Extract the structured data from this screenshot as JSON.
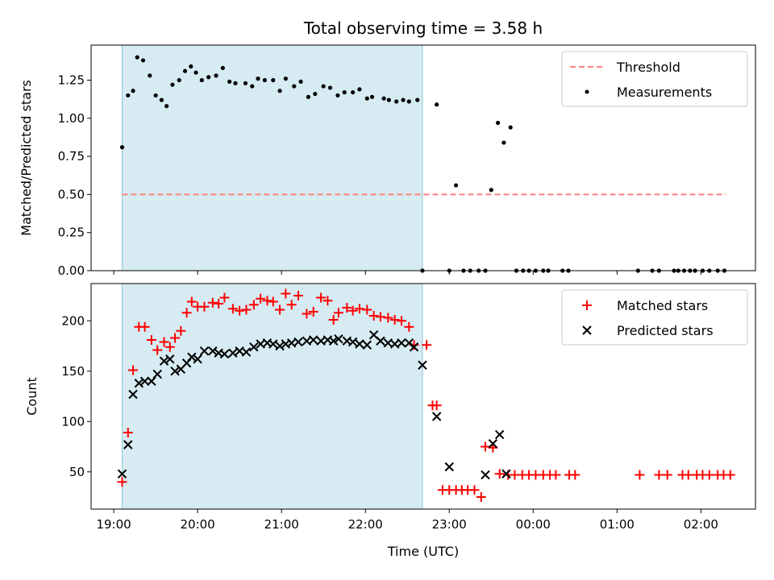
{
  "chart_data": [
    {
      "type": "scatter",
      "title": "Total observing time = 3.58 h",
      "xlabel": "",
      "ylabel": "Matched/Predicted stars",
      "x_unit": "hours (UTC)",
      "xlim": [
        18.73,
        26.65
      ],
      "ylim": [
        0.0,
        1.48
      ],
      "yticks": [
        0.0,
        0.25,
        0.5,
        0.75,
        1.0,
        1.25
      ],
      "ytick_labels": [
        "0.00",
        "0.25",
        "0.50",
        "0.75",
        "1.00",
        "1.25"
      ],
      "highlight_span": {
        "x_start": 19.1,
        "x_end": 22.68,
        "color": "#add8e6"
      },
      "threshold": {
        "name": "Threshold",
        "value": 0.5,
        "x_start": 19.1,
        "x_end": 26.3,
        "color": "#ff7f7f"
      },
      "legend_position": "top-right",
      "series": [
        {
          "name": "Measurements",
          "color": "#000000",
          "marker": "dot",
          "x": [
            19.1,
            19.17,
            19.23,
            19.28,
            19.35,
            19.43,
            19.5,
            19.57,
            19.63,
            19.7,
            19.78,
            19.85,
            19.92,
            19.98,
            20.05,
            20.13,
            20.22,
            20.3,
            20.38,
            20.45,
            20.57,
            20.65,
            20.72,
            20.8,
            20.9,
            20.98,
            21.05,
            21.15,
            21.23,
            21.32,
            21.4,
            21.5,
            21.58,
            21.67,
            21.75,
            21.85,
            21.93,
            22.02,
            22.08,
            22.22,
            22.28,
            22.37,
            22.45,
            22.52,
            22.62,
            22.68,
            22.85,
            23.0,
            23.08,
            23.17,
            23.25,
            23.35,
            23.43,
            23.5,
            23.58,
            23.65,
            23.73,
            23.8,
            23.88,
            23.95,
            24.03,
            24.12,
            24.18,
            24.35,
            24.42,
            25.25,
            25.42,
            25.5,
            25.68,
            25.73,
            25.8,
            25.87,
            25.93,
            26.02,
            26.1,
            26.2,
            26.28
          ],
          "y": [
            0.81,
            1.15,
            1.18,
            1.4,
            1.38,
            1.28,
            1.15,
            1.12,
            1.08,
            1.22,
            1.25,
            1.31,
            1.34,
            1.3,
            1.25,
            1.27,
            1.28,
            1.33,
            1.24,
            1.23,
            1.23,
            1.21,
            1.26,
            1.25,
            1.25,
            1.18,
            1.26,
            1.21,
            1.24,
            1.14,
            1.16,
            1.21,
            1.2,
            1.15,
            1.17,
            1.17,
            1.19,
            1.13,
            1.14,
            1.13,
            1.12,
            1.11,
            1.12,
            1.11,
            1.12,
            0.0,
            1.09,
            0.0,
            0.56,
            0.0,
            0.0,
            0.0,
            0.0,
            0.53,
            0.97,
            0.84,
            0.94,
            0.0,
            0.0,
            0.0,
            0.0,
            0.0,
            0.0,
            0.0,
            0.0,
            0.0,
            0.0,
            0.0,
            0.0,
            0.0,
            0.0,
            0.0,
            0.0,
            0.0,
            0.0,
            0.0,
            0.0
          ]
        }
      ]
    },
    {
      "type": "scatter",
      "xlabel": "Time (UTC)",
      "ylabel": "Count",
      "x_unit": "hours (UTC)",
      "xlim": [
        18.73,
        26.65
      ],
      "ylim": [
        13,
        237
      ],
      "xticks": [
        19,
        20,
        21,
        22,
        23,
        24,
        25,
        26
      ],
      "xtick_labels": [
        "19:00",
        "20:00",
        "21:00",
        "22:00",
        "23:00",
        "00:00",
        "01:00",
        "02:00"
      ],
      "yticks": [
        50,
        100,
        150,
        200
      ],
      "ytick_labels": [
        "50",
        "100",
        "150",
        "200"
      ],
      "highlight_span": {
        "x_start": 19.1,
        "x_end": 22.68,
        "color": "#add8e6"
      },
      "legend_position": "top-right",
      "series": [
        {
          "name": "Matched stars",
          "color": "#ff0000",
          "marker": "plus",
          "x": [
            19.1,
            19.17,
            19.23,
            19.3,
            19.37,
            19.45,
            19.52,
            19.6,
            19.67,
            19.73,
            19.8,
            19.87,
            19.93,
            20.0,
            20.08,
            20.18,
            20.25,
            20.32,
            20.42,
            20.5,
            20.58,
            20.67,
            20.75,
            20.83,
            20.9,
            20.98,
            21.05,
            21.12,
            21.2,
            21.3,
            21.38,
            21.47,
            21.55,
            21.62,
            21.68,
            21.78,
            21.85,
            21.93,
            22.02,
            22.1,
            22.18,
            22.27,
            22.35,
            22.43,
            22.52,
            22.58,
            22.73,
            22.8,
            22.85,
            22.92,
            23.0,
            23.08,
            23.15,
            23.22,
            23.3,
            23.38,
            23.43,
            23.52,
            23.6,
            23.7,
            23.78,
            23.87,
            23.95,
            24.03,
            24.12,
            24.2,
            24.27,
            24.43,
            24.5,
            25.27,
            25.5,
            25.6,
            25.78,
            25.85,
            25.95,
            26.02,
            26.1,
            26.2,
            26.27,
            26.35
          ],
          "y": [
            40,
            89,
            151,
            194,
            194,
            181,
            171,
            179,
            174,
            183,
            190,
            208,
            219,
            214,
            214,
            218,
            217,
            223,
            212,
            210,
            211,
            216,
            222,
            220,
            219,
            211,
            227,
            216,
            225,
            207,
            209,
            223,
            220,
            201,
            208,
            213,
            210,
            212,
            211,
            205,
            204,
            203,
            201,
            200,
            194,
            176,
            176,
            116,
            116,
            32,
            32,
            32,
            32,
            32,
            32,
            25,
            75,
            74,
            48,
            47,
            47,
            47,
            47,
            47,
            47,
            47,
            47,
            47,
            47,
            47,
            47,
            47,
            47,
            47,
            47,
            47,
            47,
            47,
            47,
            47
          ]
        },
        {
          "name": "Predicted stars",
          "color": "#000000",
          "marker": "x",
          "x": [
            19.1,
            19.17,
            19.23,
            19.3,
            19.37,
            19.45,
            19.52,
            19.6,
            19.67,
            19.73,
            19.8,
            19.87,
            19.93,
            20.0,
            20.08,
            20.18,
            20.25,
            20.32,
            20.42,
            20.5,
            20.58,
            20.67,
            20.75,
            20.83,
            20.9,
            20.98,
            21.05,
            21.12,
            21.2,
            21.3,
            21.38,
            21.47,
            21.55,
            21.62,
            21.68,
            21.78,
            21.85,
            21.93,
            22.02,
            22.1,
            22.18,
            22.27,
            22.35,
            22.43,
            22.52,
            22.58,
            22.68,
            22.85,
            23.0,
            23.43,
            23.52,
            23.6,
            23.68
          ],
          "y": [
            48,
            77,
            127,
            138,
            140,
            140,
            147,
            160,
            162,
            150,
            152,
            158,
            164,
            162,
            170,
            170,
            168,
            167,
            168,
            170,
            169,
            174,
            177,
            178,
            177,
            175,
            177,
            178,
            179,
            180,
            181,
            180,
            181,
            180,
            182,
            180,
            179,
            177,
            176,
            186,
            180,
            178,
            177,
            178,
            178,
            174,
            156,
            105,
            55,
            47,
            78,
            87,
            48
          ]
        }
      ]
    }
  ]
}
